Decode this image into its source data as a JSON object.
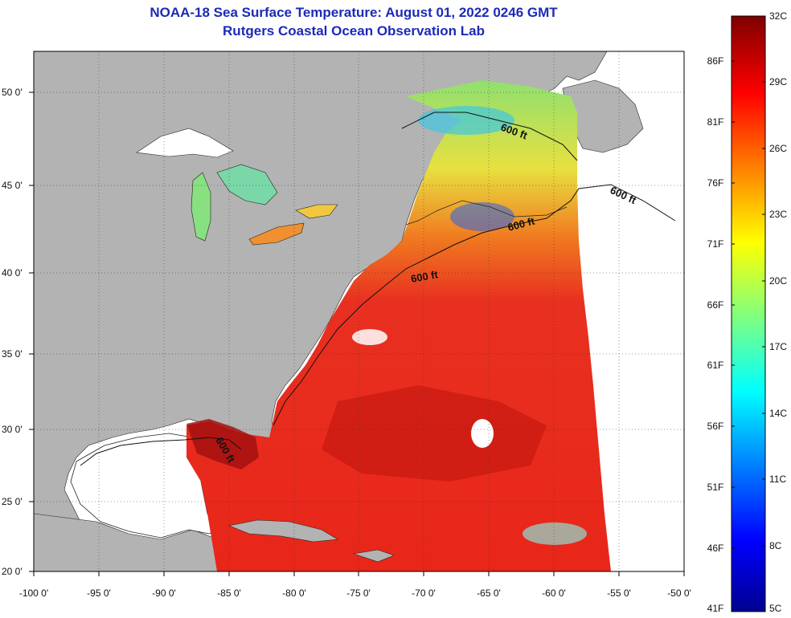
{
  "title": {
    "line1": "NOAA-18 Sea Surface Temperature:  August 01, 2022 0246 GMT",
    "line2": "Rutgers Coastal Ocean Observation Lab"
  },
  "map": {
    "lat_labels": [
      "50 0'",
      "45 0'",
      "40 0'",
      "35 0'",
      "30 0'",
      "25 0'",
      "20 0'"
    ],
    "lon_labels": [
      "-100 0'",
      "-95 0'",
      "-90 0'",
      "-85 0'",
      "-80 0'",
      "-75 0'",
      "-70 0'",
      "-65 0'",
      "-60 0'",
      "-55 0'",
      "-50 0'"
    ],
    "contour_labels": [
      "600 ft",
      "600 ft",
      "600 ft",
      "600 ft",
      "600 ft"
    ],
    "colors": {
      "land": "#b3b3b3",
      "no_data": "#ffffff",
      "warm_water": "#e8261a",
      "hot_water": "#a31010"
    }
  },
  "colorbar": {
    "celsius_labels": [
      "32C",
      "29C",
      "26C",
      "23C",
      "20C",
      "17C",
      "14C",
      "11C",
      "8C",
      "5C"
    ],
    "fahrenheit_labels": [
      "86F",
      "81F",
      "76F",
      "71F",
      "66F",
      "61F",
      "56F",
      "51F",
      "46F",
      "41F"
    ],
    "colormap": "jet"
  }
}
